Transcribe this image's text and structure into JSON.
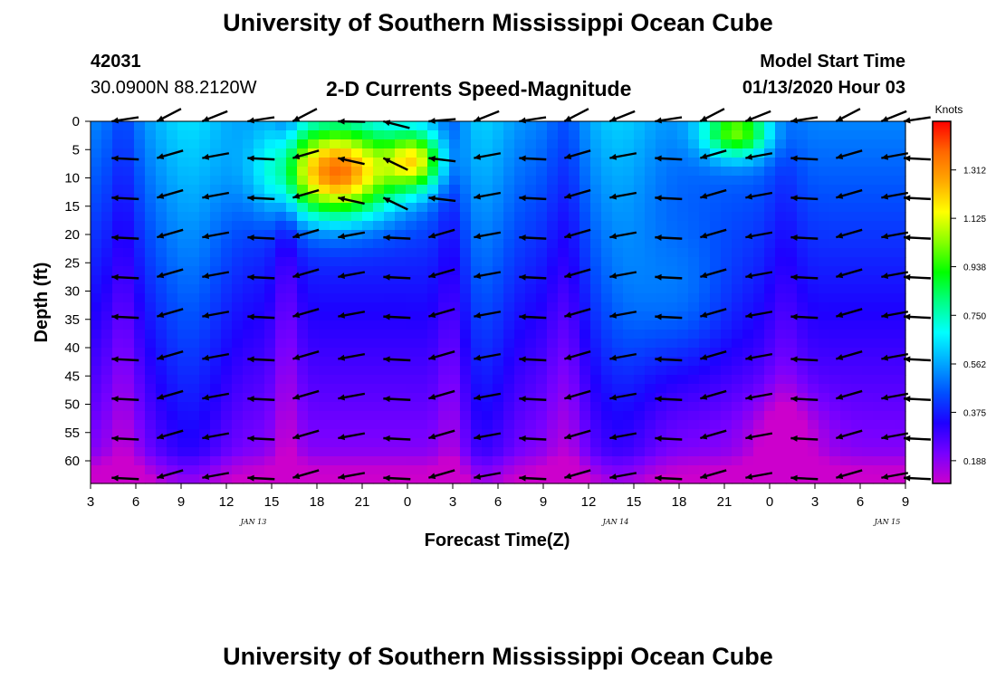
{
  "page": {
    "title_top": "University of Southern Mississippi Ocean Cube",
    "title_bottom": "University of Southern Mississippi Ocean Cube",
    "station_id": "42031",
    "station_coords": "30.0900N 88.2120W",
    "model_start_label": "Model Start Time",
    "model_start_value": "01/13/2020 Hour 03"
  },
  "colors": {
    "palette": [
      "#cc00cc",
      "#7700ff",
      "#1e00ff",
      "#0050ff",
      "#00a8ff",
      "#00ffff",
      "#00ff88",
      "#00ff00",
      "#88ff00",
      "#ffff00",
      "#ffaa00",
      "#ff6600",
      "#ff0000"
    ]
  },
  "chart_data": {
    "type": "heatmap",
    "title": "2-D Currents Speed-Magnitude",
    "xlabel": "Forecast Time(Z)",
    "ylabel": "Depth (ft)",
    "x_tick_labels": [
      "3",
      "6",
      "9",
      "12",
      "15",
      "18",
      "21",
      "0",
      "3",
      "6",
      "9",
      "12",
      "15",
      "18",
      "21",
      "0",
      "3",
      "6",
      "9"
    ],
    "x_range_hours": [
      3,
      57
    ],
    "date_labels": [
      {
        "label": "JAN 13",
        "hour": 15
      },
      {
        "label": "JAN 14",
        "hour": 39
      },
      {
        "label": "JAN 15",
        "hour": 57
      }
    ],
    "y_ticks": [
      0,
      5,
      10,
      15,
      20,
      25,
      30,
      35,
      40,
      45,
      50,
      55,
      60
    ],
    "ylim": [
      64,
      0
    ],
    "colorbar": {
      "unit": "Knots",
      "ticks": [
        "0.188",
        "0.375",
        "0.562",
        "0.750",
        "0.938",
        "1.125",
        "1.312"
      ],
      "range": [
        0.1,
        1.5
      ]
    },
    "arrow_times": [
      4.4,
      7.4,
      10.4,
      13.4,
      16.4,
      19.4,
      22.4,
      25.4,
      28.4,
      31.4,
      34.4,
      37.4,
      40.4,
      43.4,
      46.4,
      49.4,
      52.4,
      55.4,
      58.4
    ],
    "arrow_depths": [
      0,
      6.5,
      13.5,
      20.5,
      27.5,
      34.5,
      42,
      49,
      56,
      63
    ]
  }
}
